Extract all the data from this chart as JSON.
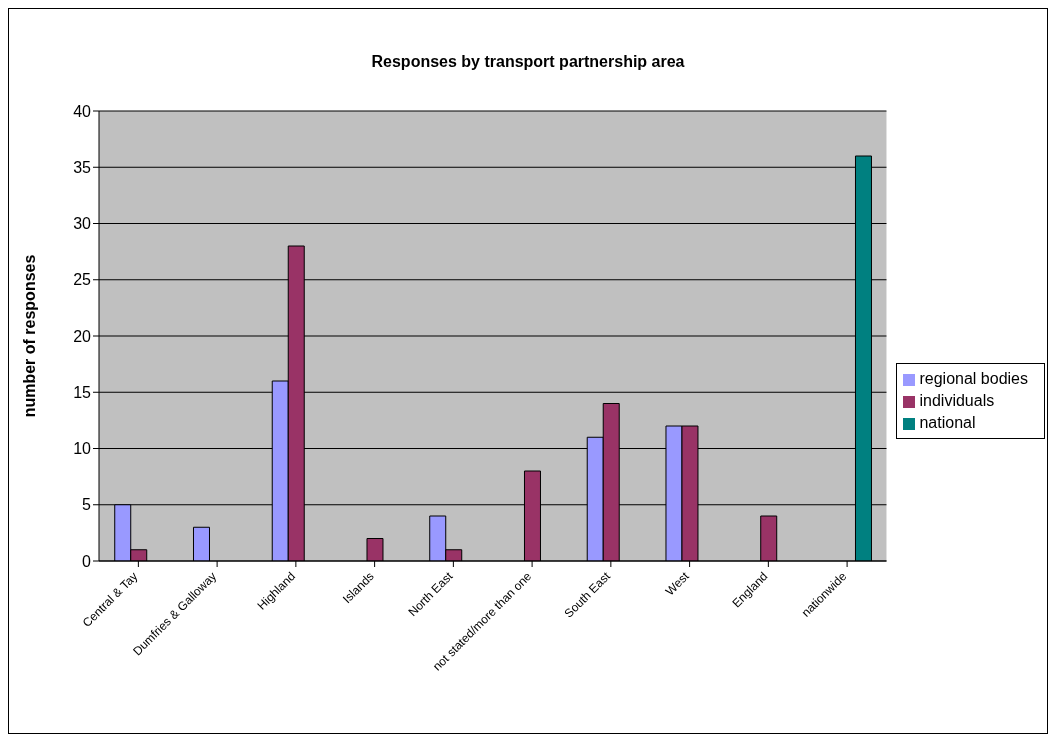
{
  "chart_data": {
    "type": "bar",
    "title": "Responses by transport partnership area",
    "ylabel": "number of responses",
    "categories": [
      "Central & Tay",
      "Dumfries & Galloway",
      "Highland",
      "Islands",
      "North East",
      "not stated/more than one",
      "South East",
      "West",
      "England",
      "nationwide"
    ],
    "series": [
      {
        "name": "regional bodies",
        "color": "#9999ff",
        "values": [
          5,
          3,
          16,
          null,
          4,
          null,
          11,
          12,
          null,
          null
        ]
      },
      {
        "name": "individuals",
        "color": "#993366",
        "values": [
          1,
          null,
          28,
          2,
          1,
          8,
          14,
          12,
          4,
          null
        ]
      },
      {
        "name": "national",
        "color": "#008080",
        "values": [
          null,
          null,
          null,
          null,
          null,
          null,
          null,
          null,
          null,
          36
        ]
      }
    ],
    "ylim": [
      0,
      40
    ],
    "yticks": [
      0,
      5,
      10,
      15,
      20,
      25,
      30,
      35,
      40
    ],
    "grid": "y",
    "legend": "right"
  }
}
